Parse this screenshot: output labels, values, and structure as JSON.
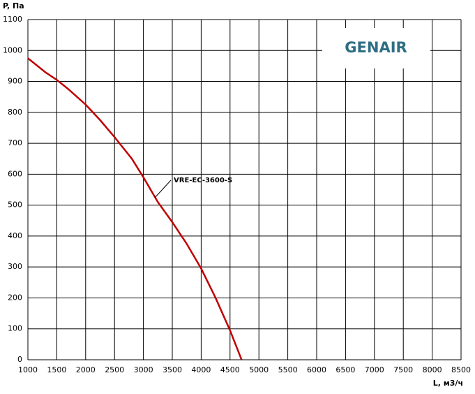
{
  "logo": "GENAIR",
  "chart_data": {
    "type": "line",
    "y_label": "P, Па",
    "x_label": "L, м3/ч",
    "x": [
      1000,
      1300,
      1500,
      1700,
      2000,
      2250,
      2500,
      2800,
      3000,
      3250,
      3500,
      3750,
      4000,
      4250,
      4500,
      4700
    ],
    "series": [
      {
        "name": "VRE-EC-3600-S",
        "color": "#c00000",
        "values": [
          975,
          930,
          905,
          875,
          825,
          775,
          720,
          650,
          590,
          510,
          445,
          375,
          295,
          200,
          95,
          0
        ]
      }
    ],
    "xlim": [
      1000,
      8500
    ],
    "ylim": [
      0,
      1100
    ],
    "xticks": [
      1000,
      1500,
      2000,
      2500,
      3000,
      3500,
      4000,
      4500,
      5000,
      5500,
      6000,
      6500,
      7000,
      7500,
      8000,
      8500
    ],
    "yticks": [
      0,
      100,
      200,
      300,
      400,
      500,
      600,
      700,
      800,
      900,
      1000,
      1100
    ],
    "grid": true
  }
}
